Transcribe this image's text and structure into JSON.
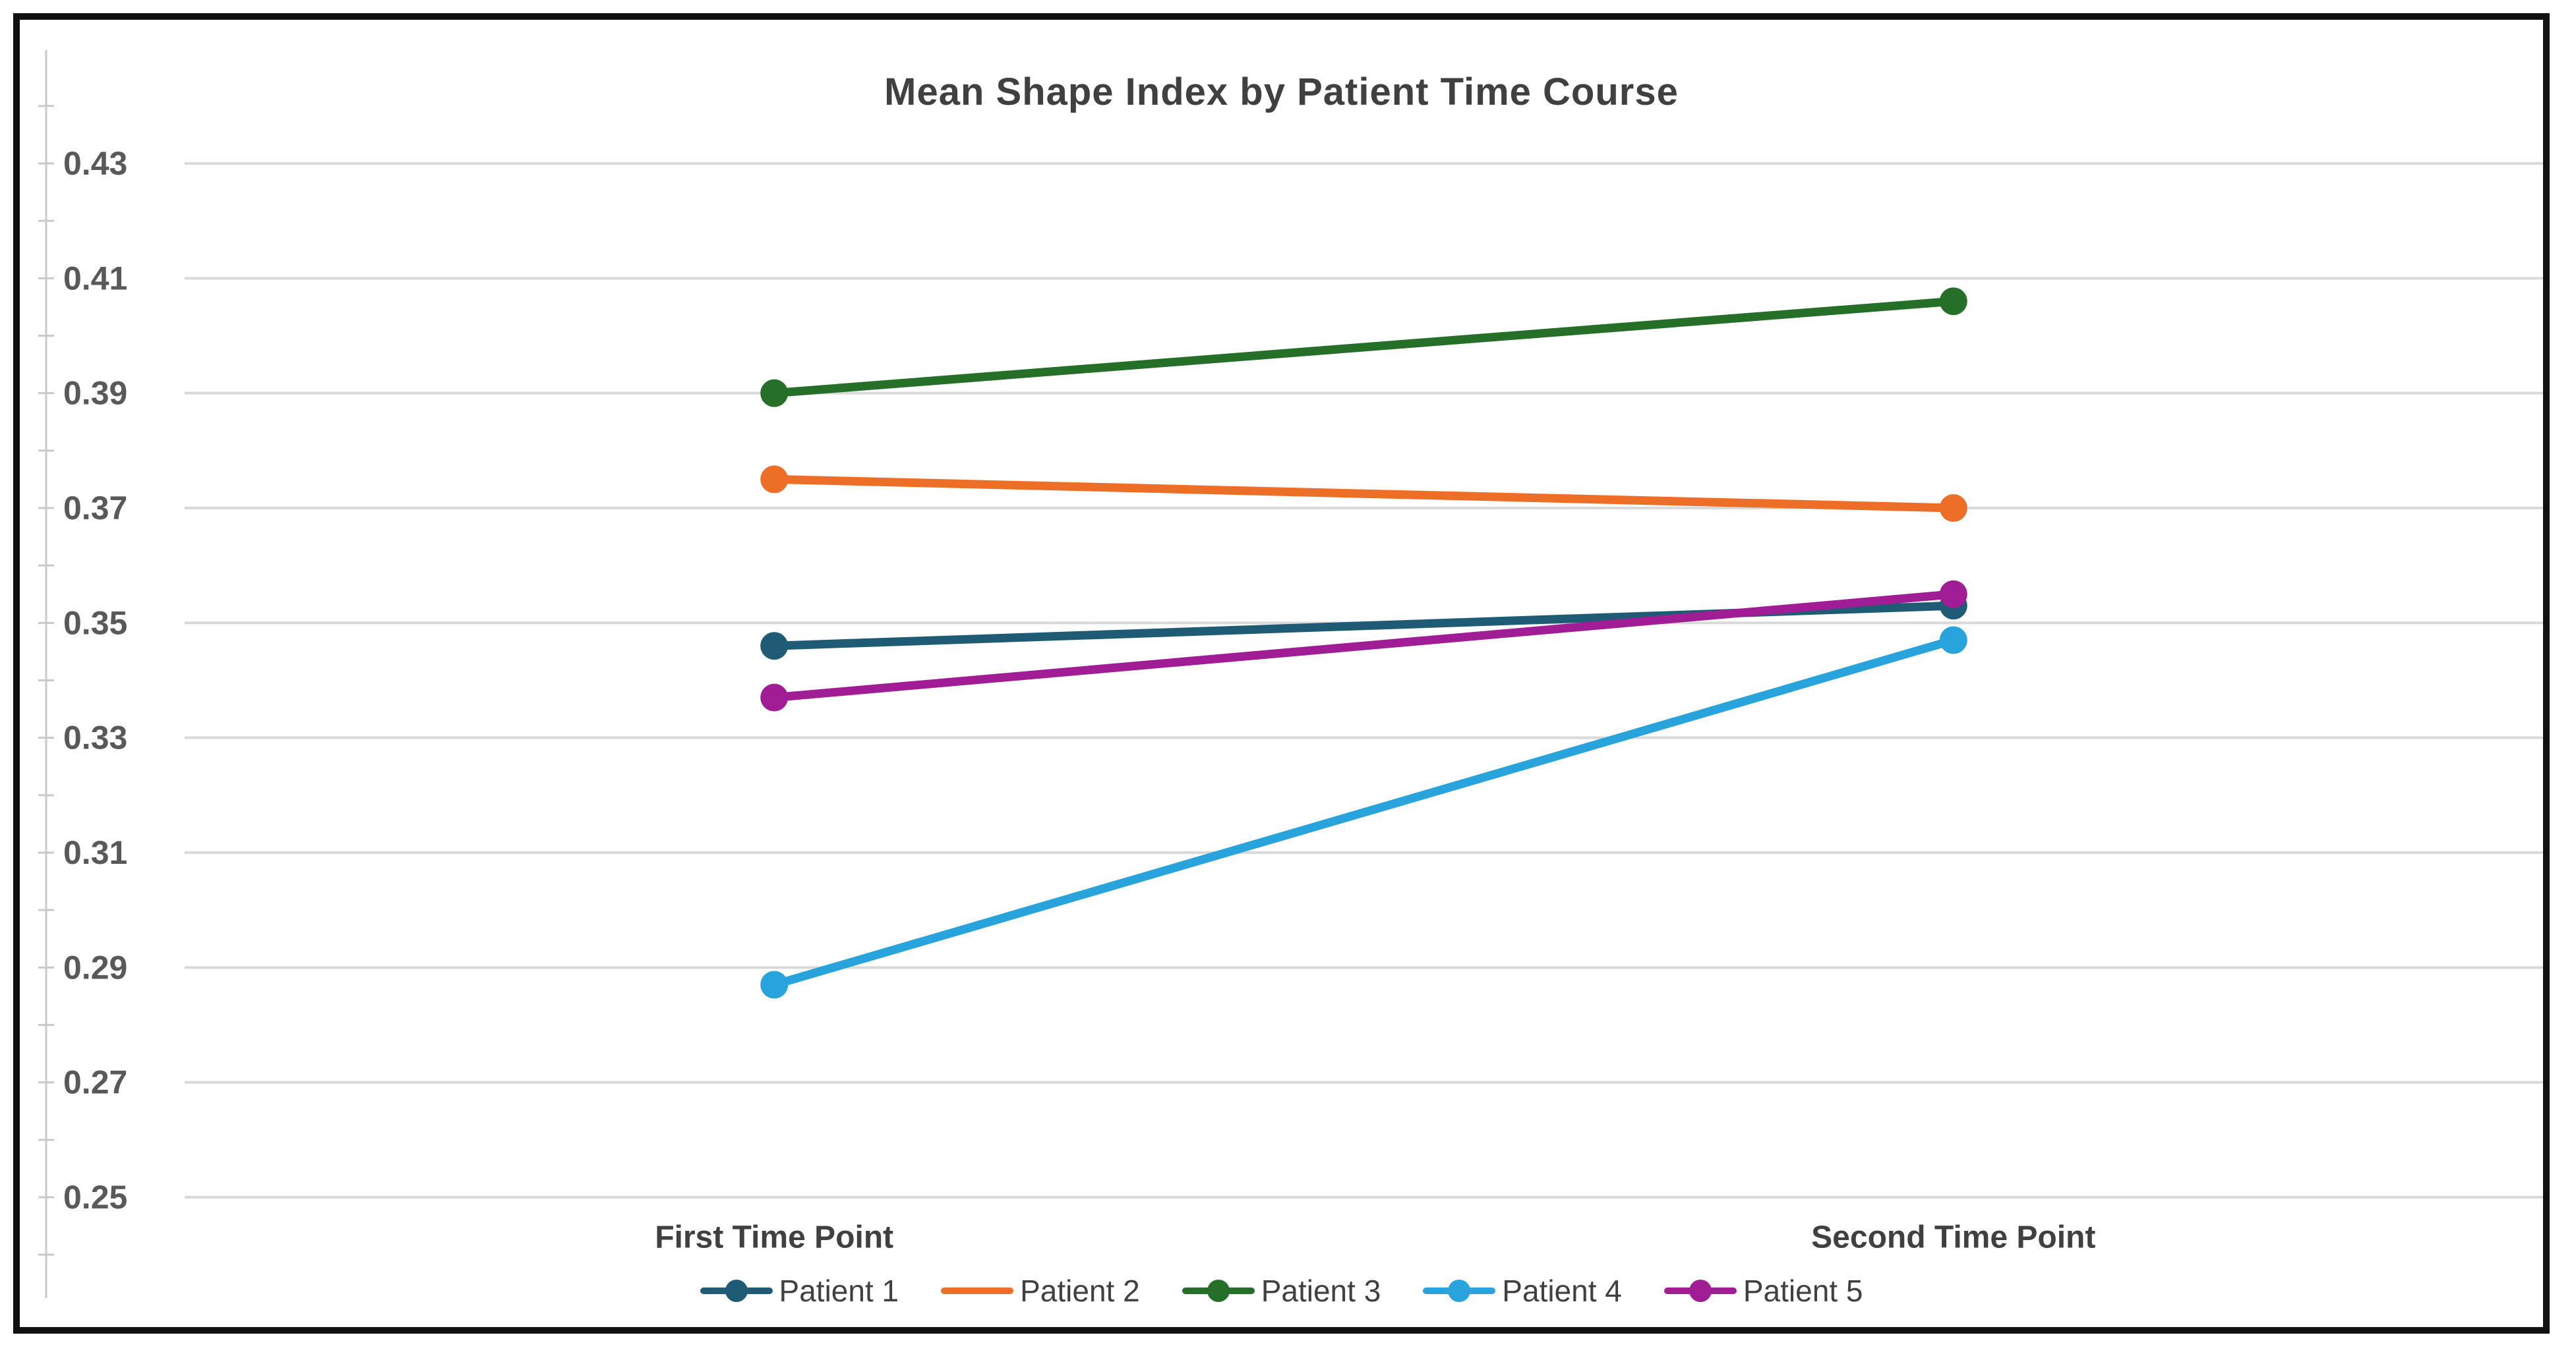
{
  "chart_data": {
    "type": "line",
    "title": "Mean Shape Index by Patient Time Course",
    "categories": [
      "First Time Point",
      "Second Time Point"
    ],
    "series": [
      {
        "name": "Patient 1",
        "color": "#1F5B74",
        "values": [
          0.346,
          0.353
        ],
        "legend_dot": true
      },
      {
        "name": "Patient 2",
        "color": "#ED6E26",
        "values": [
          0.375,
          0.37
        ],
        "legend_dot": false
      },
      {
        "name": "Patient 3",
        "color": "#256F28",
        "values": [
          0.39,
          0.406
        ],
        "legend_dot": true
      },
      {
        "name": "Patient 4",
        "color": "#29A3DC",
        "values": [
          0.287,
          0.347
        ],
        "legend_dot": true
      },
      {
        "name": "Patient 5",
        "color": "#A11D96",
        "values": [
          0.337,
          0.355
        ],
        "legend_dot": true
      }
    ],
    "xlabel": "",
    "ylabel": "",
    "ylim": [
      0.25,
      0.43
    ],
    "ytick_step": 0.02,
    "ytick_labels": [
      "0.25",
      "0.27",
      "0.29",
      "0.31",
      "0.33",
      "0.35",
      "0.37",
      "0.39",
      "0.41",
      "0.43"
    ],
    "grid": "horizontal",
    "legend_position": "bottom",
    "colors": {
      "gridline": "#D9D9D9",
      "axis_line": "#C9C9C9",
      "title_text": "#404040",
      "ytick_text": "#595959",
      "xtick_text": "#404040",
      "legend_text": "#404040",
      "frame_border": "#111111",
      "background": "#FFFFFF"
    }
  }
}
